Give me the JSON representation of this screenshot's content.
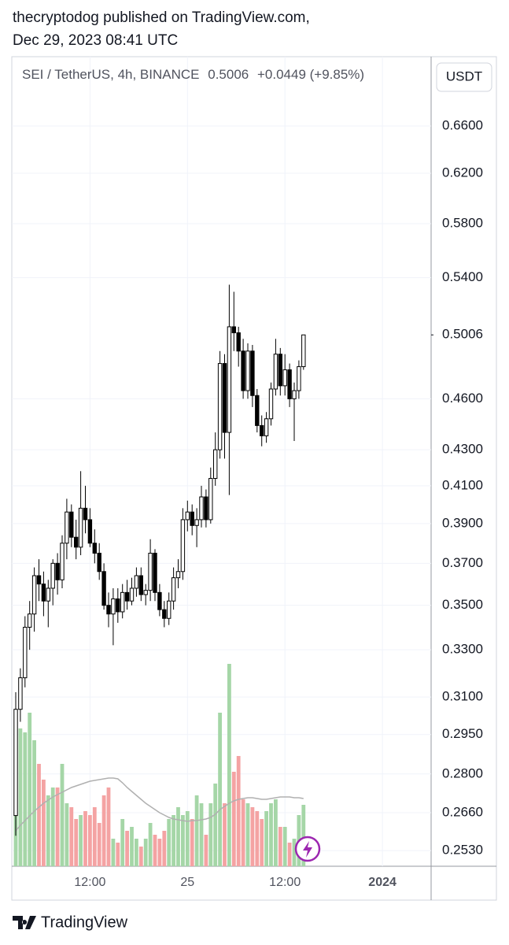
{
  "header": {
    "author_line": "thecryptodog published on TradingView.com,",
    "date": "Dec 29, 2023 08:41 UTC"
  },
  "footer": {
    "brand": "TradingView"
  },
  "chart_data": {
    "type": "candlestick",
    "legend": {
      "symbol": "SEI / TetherUS, 4h, BINANCE",
      "last": "0.5006",
      "change": "+0.0449 (+9.85%)"
    },
    "currency": "USDT",
    "log_scale": true,
    "grid": true,
    "categories": [
      null,
      null,
      null,
      null,
      null,
      null,
      null,
      null,
      null,
      null,
      null,
      null,
      null,
      null,
      null,
      null,
      "12:00",
      null,
      null,
      null,
      null,
      null,
      null,
      null,
      null,
      null,
      null,
      null,
      null,
      null,
      null,
      null,
      null,
      null,
      null,
      null,
      null,
      "25",
      null,
      null,
      null,
      null,
      null,
      null,
      null,
      null,
      null,
      null,
      null,
      null,
      null,
      null,
      null,
      null,
      null,
      null,
      null,
      null,
      "12:00",
      null,
      null,
      null,
      null,
      null,
      null,
      null,
      null,
      null,
      null,
      null,
      null,
      null,
      null,
      null,
      null,
      null,
      null,
      null,
      null,
      "2024"
    ],
    "open": [
      0.265,
      0.305,
      0.318,
      0.34,
      0.346,
      0.364,
      0.36,
      0.352,
      0.358,
      0.37,
      0.362,
      0.38,
      0.396,
      0.383,
      0.378,
      0.398,
      0.392,
      0.38,
      0.375,
      0.366,
      0.35,
      0.346,
      0.353,
      0.347,
      0.356,
      0.352,
      0.358,
      0.364,
      0.355,
      0.357,
      0.375,
      0.356,
      0.348,
      0.344,
      0.352,
      0.363,
      0.366,
      0.392,
      0.396,
      0.389,
      0.392,
      0.404,
      0.392,
      0.414,
      0.43,
      0.482,
      0.44,
      0.506,
      0.502,
      0.49,
      0.465,
      0.49,
      0.462,
      0.444,
      0.438,
      0.448,
      0.466,
      0.488,
      0.468,
      0.478,
      0.46,
      0.465,
      0.48,
      null,
      null,
      null,
      null,
      null,
      null,
      null,
      null,
      null,
      null,
      null,
      null,
      null,
      null,
      null,
      null,
      null
    ],
    "high": [
      0.312,
      0.322,
      0.345,
      0.352,
      0.368,
      0.372,
      0.366,
      0.362,
      0.372,
      0.375,
      0.384,
      0.403,
      0.4,
      0.392,
      0.418,
      0.41,
      0.398,
      0.387,
      0.38,
      0.37,
      0.356,
      0.358,
      0.358,
      0.36,
      0.362,
      0.363,
      0.368,
      0.368,
      0.36,
      0.382,
      0.377,
      0.36,
      0.352,
      0.356,
      0.368,
      0.372,
      0.398,
      0.402,
      0.4,
      0.398,
      0.41,
      0.408,
      0.42,
      0.44,
      0.49,
      0.488,
      0.535,
      0.53,
      0.506,
      0.498,
      0.495,
      0.494,
      0.466,
      0.45,
      0.452,
      0.47,
      0.498,
      0.492,
      0.488,
      0.482,
      0.47,
      0.484,
      0.5006,
      null,
      null,
      null,
      null,
      null,
      null,
      null,
      null,
      null,
      null,
      null,
      null,
      null,
      null,
      null,
      null,
      null
    ],
    "low": [
      0.258,
      0.3,
      0.314,
      0.33,
      0.338,
      0.352,
      0.345,
      0.34,
      0.35,
      0.355,
      0.358,
      0.372,
      0.378,
      0.372,
      0.374,
      0.385,
      0.378,
      0.37,
      0.362,
      0.348,
      0.34,
      0.332,
      0.342,
      0.344,
      0.348,
      0.35,
      0.354,
      0.352,
      0.35,
      0.352,
      0.352,
      0.345,
      0.34,
      0.341,
      0.348,
      0.358,
      0.362,
      0.386,
      0.384,
      0.378,
      0.388,
      0.388,
      0.39,
      0.41,
      0.425,
      0.425,
      0.405,
      0.49,
      0.48,
      0.46,
      0.46,
      0.455,
      0.44,
      0.432,
      0.434,
      0.444,
      0.462,
      0.462,
      0.462,
      0.455,
      0.435,
      0.46,
      0.478,
      null,
      null,
      null,
      null,
      null,
      null,
      null,
      null,
      null,
      null,
      null,
      null,
      null,
      null,
      null,
      null,
      null
    ],
    "close": [
      0.305,
      0.318,
      0.34,
      0.346,
      0.364,
      0.36,
      0.352,
      0.358,
      0.37,
      0.362,
      0.38,
      0.396,
      0.383,
      0.378,
      0.398,
      0.392,
      0.38,
      0.375,
      0.366,
      0.35,
      0.346,
      0.353,
      0.347,
      0.356,
      0.352,
      0.358,
      0.364,
      0.355,
      0.357,
      0.375,
      0.356,
      0.348,
      0.344,
      0.352,
      0.363,
      0.366,
      0.392,
      0.396,
      0.389,
      0.392,
      0.404,
      0.392,
      0.414,
      0.43,
      0.482,
      0.44,
      0.506,
      0.502,
      0.49,
      0.465,
      0.49,
      0.462,
      0.444,
      0.438,
      0.448,
      0.466,
      0.488,
      0.468,
      0.478,
      0.46,
      0.465,
      0.48,
      0.5006,
      null,
      null,
      null,
      null,
      null,
      null,
      null,
      null,
      null,
      null,
      null,
      null,
      null,
      null,
      null,
      null,
      null
    ],
    "volume": [
      180,
      175,
      170,
      195,
      160,
      130,
      110,
      90,
      100,
      100,
      130,
      80,
      75,
      60,
      65,
      70,
      65,
      75,
      55,
      90,
      100,
      35,
      30,
      60,
      45,
      50,
      35,
      25,
      35,
      55,
      40,
      35,
      45,
      60,
      65,
      75,
      65,
      70,
      60,
      90,
      80,
      40,
      80,
      105,
      195,
      80,
      257,
      120,
      140,
      85,
      80,
      75,
      70,
      60,
      70,
      80,
      85,
      50,
      50,
      30,
      35,
      65,
      78,
      null,
      null,
      null,
      null,
      null,
      null,
      null,
      null,
      null,
      null,
      null,
      null,
      null,
      null,
      null,
      null,
      null
    ],
    "volume_ma": [
      45,
      52,
      58,
      64,
      70,
      75,
      80,
      84,
      88,
      91,
      94,
      97,
      100,
      102,
      104,
      106,
      108,
      109,
      110,
      111,
      112,
      112,
      111,
      106,
      100,
      95,
      90,
      85,
      80,
      76,
      72,
      68,
      65,
      62,
      60,
      59,
      58,
      57,
      58,
      58,
      59,
      60,
      62,
      66,
      72,
      76,
      80,
      83,
      85,
      86,
      87,
      87,
      86,
      85,
      85,
      86,
      87,
      88,
      88,
      88,
      87,
      87,
      86,
      null,
      null,
      null,
      null,
      null,
      null,
      null,
      null,
      null,
      null,
      null,
      null,
      null,
      null,
      null,
      null,
      null
    ],
    "volume_lim": [
      0,
      270
    ],
    "ylim": [
      0.2478,
      0.7234
    ],
    "yticks": [
      {
        "value": 0.66,
        "label": "0.6600"
      },
      {
        "value": 0.62,
        "label": "0.6200"
      },
      {
        "value": 0.58,
        "label": "0.5800"
      },
      {
        "value": 0.54,
        "label": "0.5400"
      },
      {
        "value": 0.46,
        "label": "0.4600"
      },
      {
        "value": 0.43,
        "label": "0.4300"
      },
      {
        "value": 0.41,
        "label": "0.4100"
      },
      {
        "value": 0.39,
        "label": "0.3900"
      },
      {
        "value": 0.37,
        "label": "0.3700"
      },
      {
        "value": 0.35,
        "label": "0.3500"
      },
      {
        "value": 0.33,
        "label": "0.3300"
      },
      {
        "value": 0.31,
        "label": "0.3100"
      },
      {
        "value": 0.295,
        "label": "0.2950"
      },
      {
        "value": 0.28,
        "label": "0.2800"
      },
      {
        "value": 0.266,
        "label": "0.2660"
      },
      {
        "value": 0.253,
        "label": "0.2530"
      }
    ],
    "last_price": 0.5006,
    "candle_up_color": "#ffffff",
    "candle_down_color": "#000000",
    "volume_up_color": "#a5d6a7",
    "volume_down_color": "#f4a3a3",
    "volume_ma_color": "#b0b0b0"
  }
}
